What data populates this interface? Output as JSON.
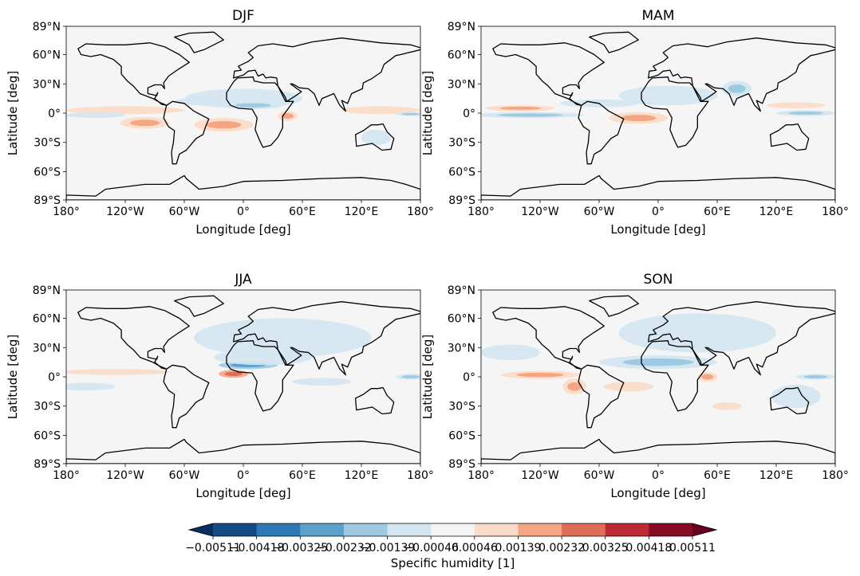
{
  "chart_data": {
    "type": "heatmap",
    "title": "Seasonal specific humidity anomaly maps",
    "panels": [
      {
        "title": "DJF",
        "features": [
          {
            "lon": -120,
            "lat": 3,
            "rl": 60,
            "rt": 4,
            "level": 1
          },
          {
            "lon": -100,
            "lat": -10,
            "rl": 25,
            "rt": 6,
            "level": 2
          },
          {
            "lon": -20,
            "lat": -12,
            "rl": 30,
            "rt": 7,
            "level": 2
          },
          {
            "lon": 45,
            "lat": -3,
            "rl": 10,
            "rt": 5,
            "level": 2
          },
          {
            "lon": 140,
            "lat": 3,
            "rl": 40,
            "rt": 4,
            "level": 1
          },
          {
            "lon": -150,
            "lat": -2,
            "rl": 30,
            "rt": 3,
            "level": -1
          },
          {
            "lon": 170,
            "lat": -1,
            "rl": 15,
            "rt": 2,
            "level": -2
          },
          {
            "lon": 0,
            "lat": 15,
            "rl": 60,
            "rt": 10,
            "level": -1
          },
          {
            "lon": 10,
            "lat": 8,
            "rl": 30,
            "rt": 4,
            "level": -2
          },
          {
            "lon": 135,
            "lat": -25,
            "rl": 15,
            "rt": 8,
            "level": -1
          },
          {
            "lon": -40,
            "lat": 12,
            "rl": 30,
            "rt": 4,
            "level": -1
          }
        ]
      },
      {
        "title": "MAM",
        "features": [
          {
            "lon": -130,
            "lat": -2,
            "rl": 55,
            "rt": 3,
            "level": -2
          },
          {
            "lon": -140,
            "lat": 5,
            "rl": 35,
            "rt": 3,
            "level": 2
          },
          {
            "lon": -20,
            "lat": -5,
            "rl": 30,
            "rt": 6,
            "level": 2
          },
          {
            "lon": 10,
            "lat": 18,
            "rl": 50,
            "rt": 10,
            "level": -1
          },
          {
            "lon": 80,
            "lat": 25,
            "rl": 15,
            "rt": 8,
            "level": -2
          },
          {
            "lon": 150,
            "lat": 0,
            "rl": 30,
            "rt": 3,
            "level": -2
          },
          {
            "lon": 140,
            "lat": 8,
            "rl": 30,
            "rt": 3,
            "level": 1
          },
          {
            "lon": -60,
            "lat": 10,
            "rl": 40,
            "rt": 4,
            "level": -1
          }
        ]
      },
      {
        "title": "JJA",
        "features": [
          {
            "lon": -130,
            "lat": 5,
            "rl": 55,
            "rt": 3,
            "level": 1
          },
          {
            "lon": -10,
            "lat": 3,
            "rl": 15,
            "rt": 4,
            "level": 3
          },
          {
            "lon": 5,
            "lat": 12,
            "rl": 30,
            "rt": 4,
            "level": -3
          },
          {
            "lon": 40,
            "lat": 40,
            "rl": 90,
            "rt": 20,
            "level": -1
          },
          {
            "lon": 20,
            "lat": 20,
            "rl": 50,
            "rt": 8,
            "level": -1
          },
          {
            "lon": 170,
            "lat": 0,
            "rl": 15,
            "rt": 3,
            "level": -2
          },
          {
            "lon": -160,
            "lat": -10,
            "rl": 30,
            "rt": 4,
            "level": -1
          },
          {
            "lon": 80,
            "lat": -5,
            "rl": 30,
            "rt": 4,
            "level": -1
          }
        ]
      },
      {
        "title": "SON",
        "features": [
          {
            "lon": -120,
            "lat": 2,
            "rl": 40,
            "rt": 4,
            "level": 2
          },
          {
            "lon": -85,
            "lat": -10,
            "rl": 12,
            "rt": 8,
            "level": 2
          },
          {
            "lon": -30,
            "lat": -10,
            "rl": 25,
            "rt": 5,
            "level": 1
          },
          {
            "lon": 50,
            "lat": 0,
            "rl": 10,
            "rt": 5,
            "level": 2
          },
          {
            "lon": 0,
            "lat": 15,
            "rl": 60,
            "rt": 7,
            "level": -2
          },
          {
            "lon": 40,
            "lat": 45,
            "rl": 80,
            "rt": 20,
            "level": -1
          },
          {
            "lon": 160,
            "lat": 0,
            "rl": 20,
            "rt": 3,
            "level": -2
          },
          {
            "lon": 140,
            "lat": -20,
            "rl": 25,
            "rt": 12,
            "level": -1
          },
          {
            "lon": -150,
            "lat": 25,
            "rl": 30,
            "rt": 8,
            "level": -1
          },
          {
            "lon": 70,
            "lat": -30,
            "rl": 15,
            "rt": 4,
            "level": 1
          }
        ]
      }
    ],
    "xlabel": "Longitude [deg]",
    "ylabel": "Latitude [deg]",
    "xlim": [
      -180,
      180
    ],
    "ylim": [
      -89,
      89
    ],
    "xticks": [
      -180,
      -120,
      -60,
      0,
      60,
      120,
      180
    ],
    "xtick_labels": [
      "180°",
      "120°W",
      "60°W",
      "0°",
      "60°E",
      "120°E",
      "180°"
    ],
    "yticks": [
      89,
      60,
      30,
      0,
      -30,
      -60,
      -89
    ],
    "ytick_labels": [
      "89°N",
      "60°N",
      "30°N",
      "0°",
      "30°S",
      "60°S",
      "89°S"
    ],
    "colorbar": {
      "label": "Specific humidity [1]",
      "levels": [
        -0.00511,
        -0.00418,
        -0.00325,
        -0.00232,
        -0.00139,
        -0.00046,
        0.00046,
        0.00139,
        0.00232,
        0.00325,
        0.00418,
        0.00511
      ],
      "tick_labels": [
        "−0.00511",
        "−0.00418",
        "−0.00325",
        "−0.00232",
        "−0.00139",
        "−0.00046",
        "0.00046",
        "0.00139",
        "0.00232",
        "0.00325",
        "0.00418",
        "0.00511"
      ],
      "colors": [
        "#053061",
        "#134b87",
        "#2e78b5",
        "#5aa2cc",
        "#9ecae1",
        "#d3e6f1",
        "#f5f5f5",
        "#fcdac8",
        "#f4a683",
        "#dd6f57",
        "#bd2a33",
        "#860b24",
        "#67001f"
      ],
      "extend": "both"
    }
  }
}
